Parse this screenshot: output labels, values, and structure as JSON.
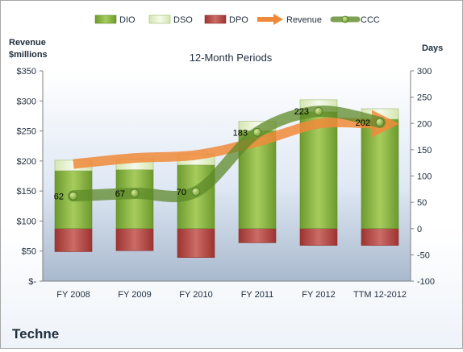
{
  "company": "Techne",
  "chart_data": {
    "type": "bar",
    "title": "12-Month Periods",
    "categories": [
      "FY 2008",
      "FY 2009",
      "FY 2010",
      "FY 2011",
      "FY 2012",
      "TTM 12-2012"
    ],
    "y_left": {
      "label_line1": "Revenue",
      "label_line2": "$millions",
      "ylim": [
        0,
        350
      ],
      "ticks": [
        "$-",
        "$50",
        "$100",
        "$150",
        "$200",
        "$250",
        "$300",
        "$350"
      ]
    },
    "y_right": {
      "label": "Days",
      "ylim": [
        -100,
        300
      ],
      "ticks": [
        "-100",
        "-50",
        "0",
        "50",
        "100",
        "150",
        "200",
        "250",
        "300"
      ]
    },
    "series": [
      {
        "name": "DIO",
        "axis": "right",
        "kind": "bar",
        "values": [
          110,
          112,
          121,
          186,
          222,
          208
        ],
        "color": "#7aa43c"
      },
      {
        "name": "DSO",
        "axis": "right",
        "kind": "bar-stacked",
        "values": [
          20,
          20,
          21,
          18,
          23,
          20
        ],
        "color": "#e0ecc6"
      },
      {
        "name": "DPO",
        "axis": "right",
        "kind": "bar-below-zero",
        "values": [
          -44,
          -42,
          -55,
          -27,
          -32,
          -32
        ],
        "color": "#b94a48"
      },
      {
        "name": "Revenue",
        "axis": "left",
        "kind": "line",
        "values": [
          195,
          205,
          210,
          232,
          262,
          262
        ],
        "color": "#f08a3a"
      },
      {
        "name": "CCC",
        "axis": "right",
        "kind": "line",
        "values": [
          62,
          67,
          70,
          183,
          223,
          202
        ],
        "color": "#5e8a2a"
      }
    ],
    "data_labels": [
      "62",
      "67",
      "70",
      "183",
      "223",
      "202"
    ],
    "legend_position": "top",
    "grid": false
  }
}
